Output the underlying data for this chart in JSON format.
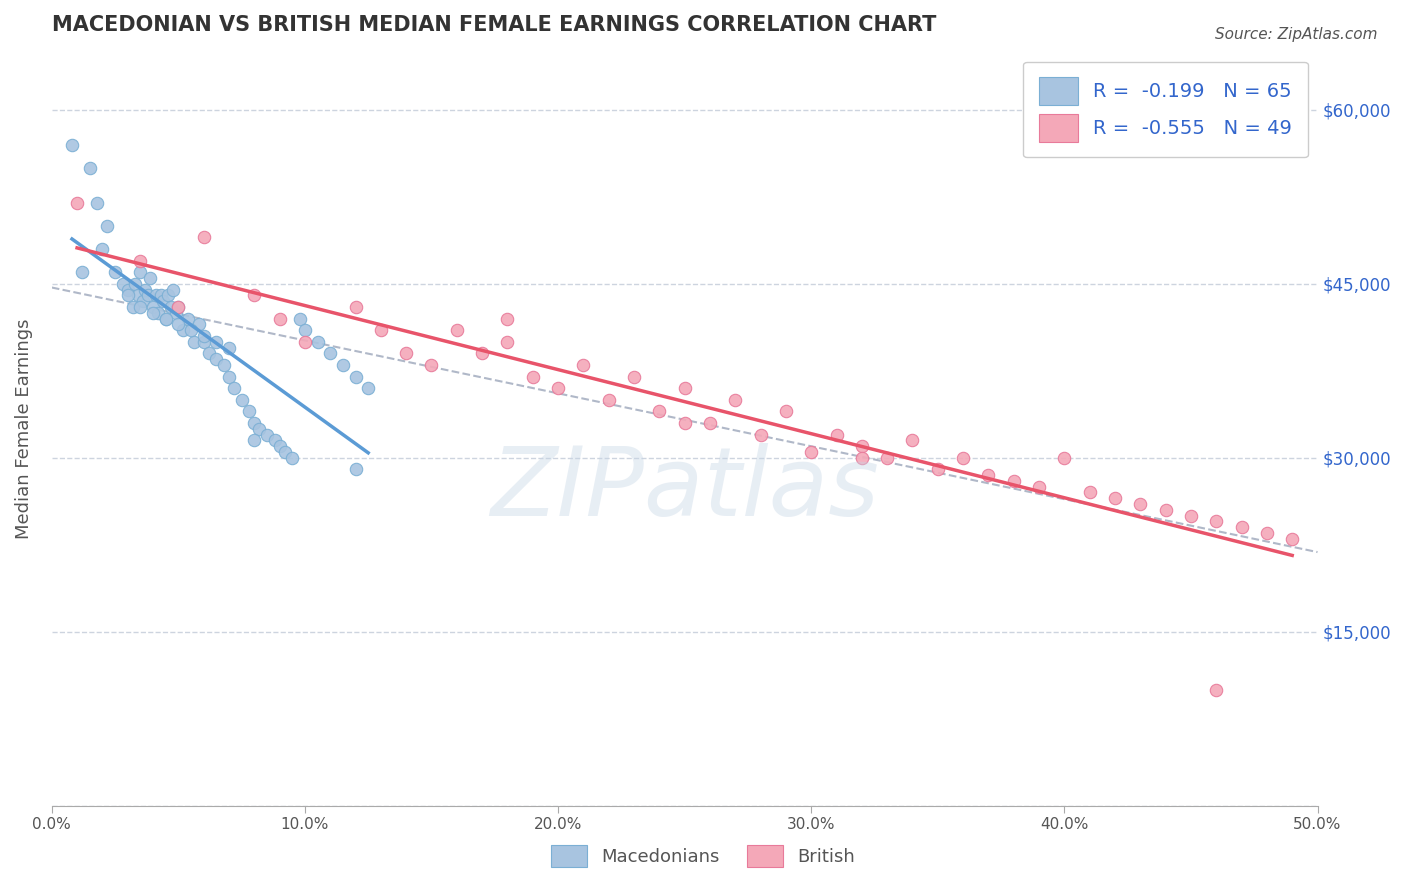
{
  "title": "MACEDONIAN VS BRITISH MEDIAN FEMALE EARNINGS CORRELATION CHART",
  "source": "Source: ZipAtlas.com",
  "ylabel": "Median Female Earnings",
  "xlim": [
    0.0,
    0.5
  ],
  "ylim": [
    0,
    65000
  ],
  "yticks": [
    0,
    15000,
    30000,
    45000,
    60000
  ],
  "ytick_labels": [
    "",
    "$15,000",
    "$30,000",
    "$45,000",
    "$60,000"
  ],
  "xtick_labels": [
    "0.0%",
    "10.0%",
    "20.0%",
    "30.0%",
    "40.0%",
    "50.0%"
  ],
  "xticks": [
    0.0,
    0.1,
    0.2,
    0.3,
    0.4,
    0.5
  ],
  "r_macedonian": -0.199,
  "n_macedonian": 65,
  "r_british": -0.555,
  "n_british": 49,
  "blue_color": "#a8c4e0",
  "blue_edge": "#7bafd4",
  "pink_color": "#f4a8b8",
  "pink_edge": "#e87a9a",
  "trend_blue": "#5b9bd5",
  "trend_pink": "#e8546a",
  "trend_dashed": "#b0b8c8",
  "watermark_color": "#c5d5e5",
  "legend_r_color": "#3366cc",
  "background_color": "#ffffff",
  "grid_color": "#c8d0dc",
  "macedonian_x": [
    0.008,
    0.012,
    0.015,
    0.018,
    0.02,
    0.022,
    0.025,
    0.028,
    0.03,
    0.032,
    0.033,
    0.034,
    0.035,
    0.036,
    0.037,
    0.038,
    0.039,
    0.04,
    0.041,
    0.042,
    0.043,
    0.044,
    0.045,
    0.046,
    0.047,
    0.048,
    0.049,
    0.05,
    0.052,
    0.054,
    0.056,
    0.058,
    0.06,
    0.062,
    0.065,
    0.068,
    0.07,
    0.072,
    0.075,
    0.078,
    0.08,
    0.082,
    0.085,
    0.088,
    0.09,
    0.092,
    0.095,
    0.098,
    0.1,
    0.105,
    0.11,
    0.115,
    0.12,
    0.125,
    0.03,
    0.035,
    0.04,
    0.045,
    0.05,
    0.055,
    0.06,
    0.065,
    0.07,
    0.12,
    0.08
  ],
  "macedonian_y": [
    57000,
    46000,
    55000,
    52000,
    48000,
    50000,
    46000,
    45000,
    44500,
    43000,
    45000,
    44000,
    46000,
    43500,
    44500,
    44000,
    45500,
    43000,
    44000,
    42500,
    44000,
    43500,
    42000,
    44000,
    43000,
    44500,
    42500,
    43000,
    41000,
    42000,
    40000,
    41500,
    40000,
    39000,
    38500,
    38000,
    37000,
    36000,
    35000,
    34000,
    33000,
    32500,
    32000,
    31500,
    31000,
    30500,
    30000,
    42000,
    41000,
    40000,
    39000,
    38000,
    37000,
    36000,
    44000,
    43000,
    42500,
    42000,
    41500,
    41000,
    40500,
    40000,
    39500,
    29000,
    31500
  ],
  "british_x": [
    0.01,
    0.035,
    0.05,
    0.06,
    0.08,
    0.09,
    0.1,
    0.12,
    0.13,
    0.14,
    0.15,
    0.16,
    0.17,
    0.18,
    0.19,
    0.2,
    0.21,
    0.22,
    0.23,
    0.24,
    0.25,
    0.26,
    0.27,
    0.28,
    0.29,
    0.3,
    0.31,
    0.32,
    0.33,
    0.34,
    0.35,
    0.36,
    0.37,
    0.38,
    0.39,
    0.4,
    0.41,
    0.42,
    0.43,
    0.44,
    0.45,
    0.46,
    0.47,
    0.48,
    0.49,
    0.18,
    0.25,
    0.32,
    0.46
  ],
  "british_y": [
    52000,
    47000,
    43000,
    49000,
    44000,
    42000,
    40000,
    43000,
    41000,
    39000,
    38000,
    41000,
    39000,
    42000,
    37000,
    36000,
    38000,
    35000,
    37000,
    34000,
    36000,
    33000,
    35000,
    32000,
    34000,
    30500,
    32000,
    31000,
    30000,
    31500,
    29000,
    30000,
    28500,
    28000,
    27500,
    30000,
    27000,
    26500,
    26000,
    25500,
    25000,
    24500,
    24000,
    23500,
    23000,
    40000,
    33000,
    30000,
    10000
  ]
}
